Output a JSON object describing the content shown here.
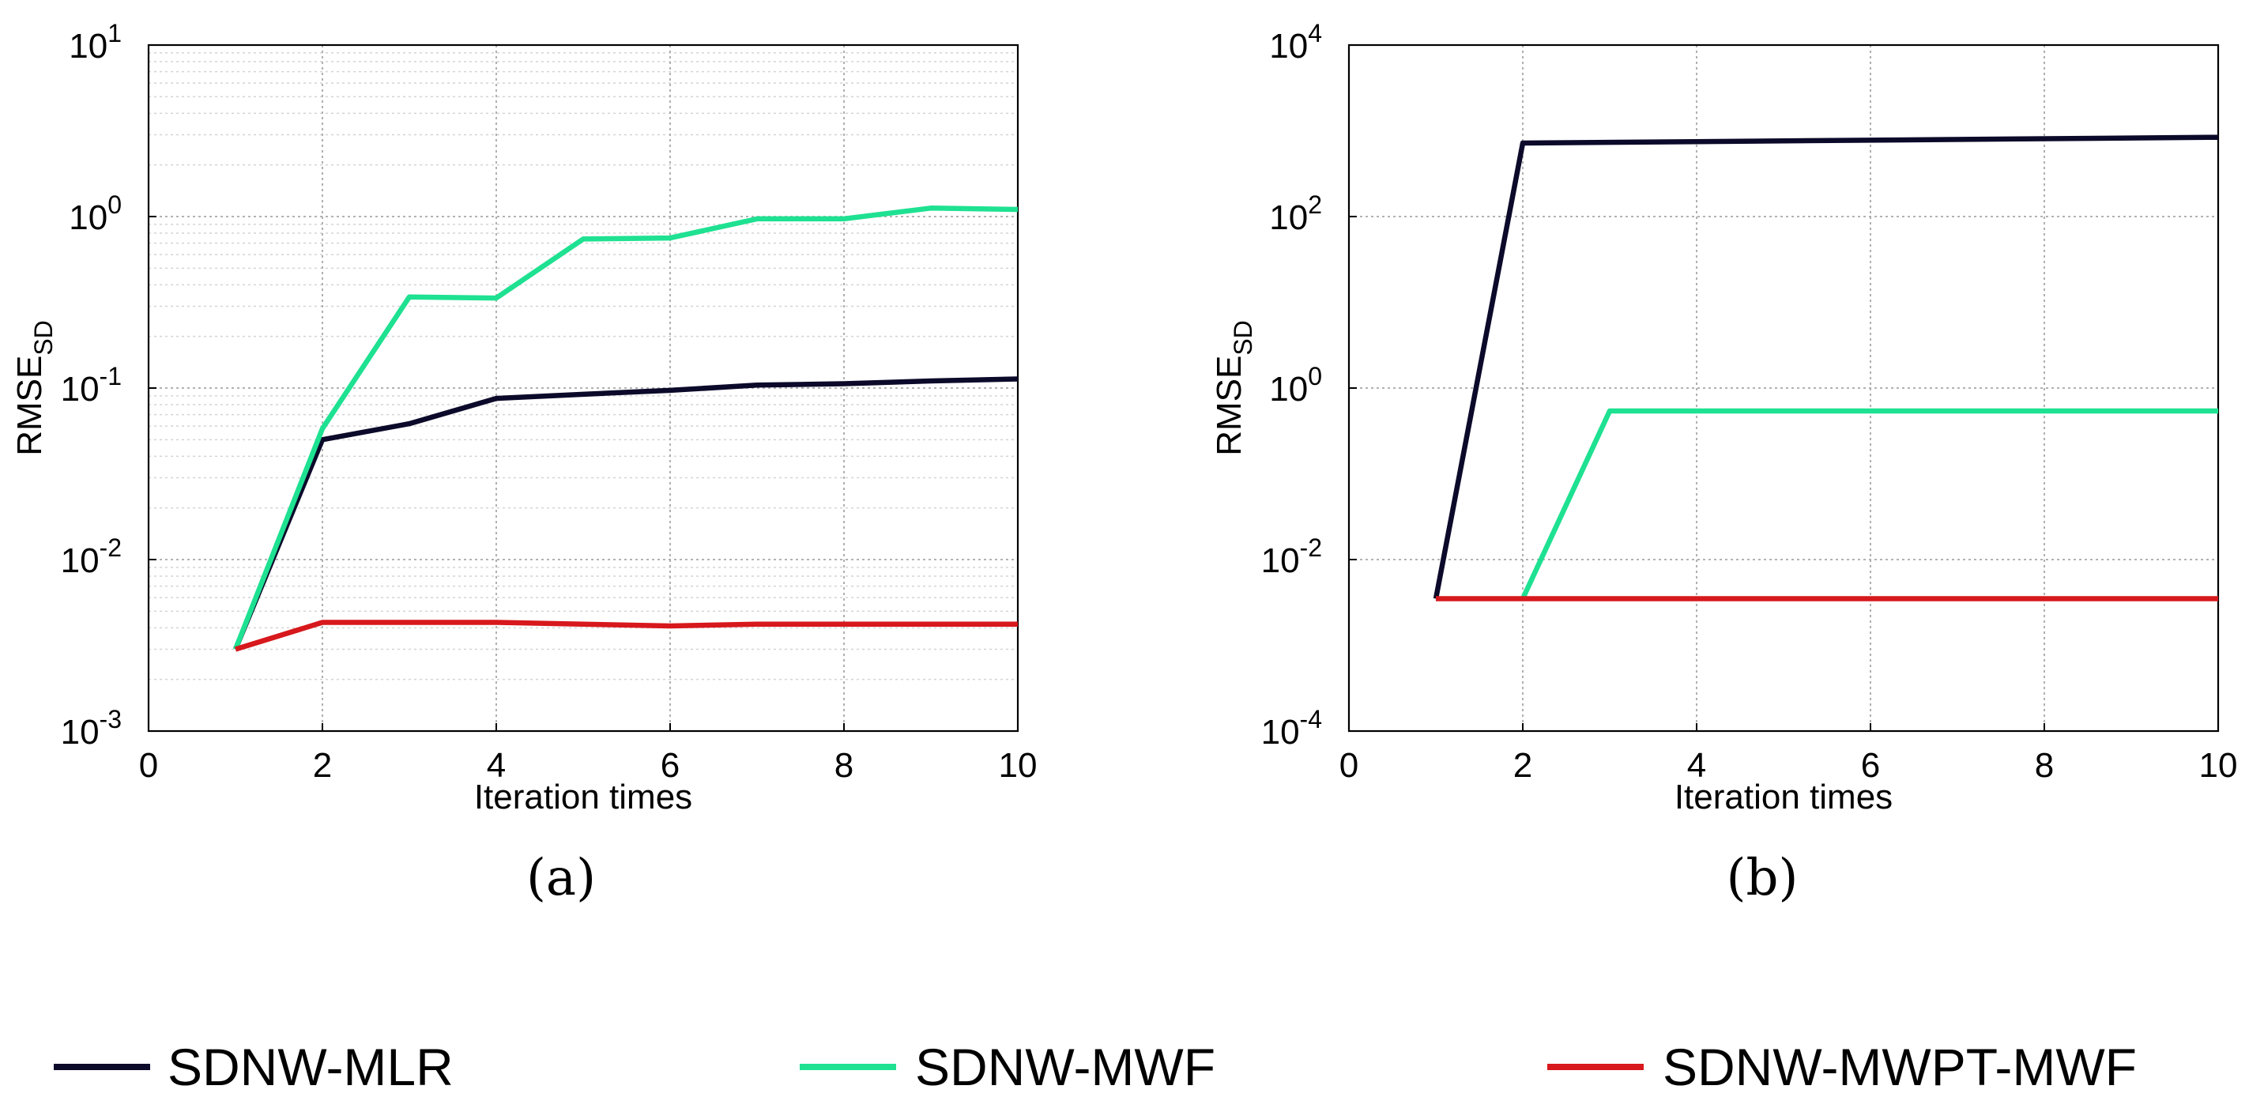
{
  "chart_data": [
    {
      "type": "line",
      "panel": "a",
      "panel_label": "(a)",
      "xlabel": "Iteration times",
      "ylabel": "RMSE",
      "ylabel_sub": "SD",
      "yscale": "log",
      "xlim": [
        0,
        10
      ],
      "ylim": [
        0.001,
        10
      ],
      "xticks": [
        "0",
        "2",
        "4",
        "6",
        "8",
        "10"
      ],
      "yticks": [
        {
          "base": "10",
          "exp": "-3"
        },
        {
          "base": "10",
          "exp": "-2"
        },
        {
          "base": "10",
          "exp": "-1"
        },
        {
          "base": "10",
          "exp": "0"
        },
        {
          "base": "10",
          "exp": "1"
        }
      ],
      "grid": true,
      "series": [
        {
          "name": "SDNW-MLR",
          "color": "#0b0a2a",
          "x": [
            1,
            2,
            3,
            4,
            5,
            6,
            7,
            8,
            9,
            10
          ],
          "y": [
            0.003,
            0.05,
            0.062,
            0.087,
            0.092,
            0.097,
            0.104,
            0.106,
            0.11,
            0.113
          ]
        },
        {
          "name": "SDNW-MWF",
          "color": "#1ee191",
          "x": [
            1,
            2,
            3,
            4,
            5,
            6,
            7,
            8,
            9,
            10
          ],
          "y": [
            0.003,
            0.058,
            0.34,
            0.335,
            0.74,
            0.75,
            0.97,
            0.97,
            1.12,
            1.1
          ]
        },
        {
          "name": "SDNW-MWPT-MWF",
          "color": "#d7181c",
          "x": [
            1,
            2,
            3,
            4,
            5,
            6,
            7,
            8,
            9,
            10
          ],
          "y": [
            0.003,
            0.0043,
            0.0043,
            0.0043,
            0.0042,
            0.0041,
            0.0042,
            0.0042,
            0.0042,
            0.0042
          ]
        }
      ]
    },
    {
      "type": "line",
      "panel": "b",
      "panel_label": "(b)",
      "xlabel": "Iteration times",
      "ylabel": "RMSE",
      "ylabel_sub": "SD",
      "yscale": "log",
      "xlim": [
        0,
        10
      ],
      "ylim": [
        0.0001,
        10000
      ],
      "xticks": [
        "0",
        "2",
        "4",
        "6",
        "8",
        "10"
      ],
      "yticks": [
        {
          "base": "10",
          "exp": "-4"
        },
        {
          "base": "10",
          "exp": "-2"
        },
        {
          "base": "10",
          "exp": "0"
        },
        {
          "base": "10",
          "exp": "2"
        },
        {
          "base": "10",
          "exp": "4"
        }
      ],
      "grid": true,
      "series": [
        {
          "name": "SDNW-MLR",
          "color": "#0b0a2a",
          "x": [
            1,
            2,
            10
          ],
          "y": [
            0.0035,
            720,
            840
          ]
        },
        {
          "name": "SDNW-MWF",
          "color": "#1ee191",
          "x": [
            2,
            3,
            10
          ],
          "y": [
            0.0035,
            0.54,
            0.54
          ]
        },
        {
          "name": "SDNW-MWPT-MWF",
          "color": "#d7181c",
          "x": [
            1,
            10
          ],
          "y": [
            0.0035,
            0.0035
          ]
        }
      ]
    }
  ],
  "legend": [
    {
      "label": "SDNW-MLR",
      "color": "#0b0a2a"
    },
    {
      "label": "SDNW-MWF",
      "color": "#1ee191"
    },
    {
      "label": "SDNW-MWPT-MWF",
      "color": "#d7181c"
    }
  ]
}
